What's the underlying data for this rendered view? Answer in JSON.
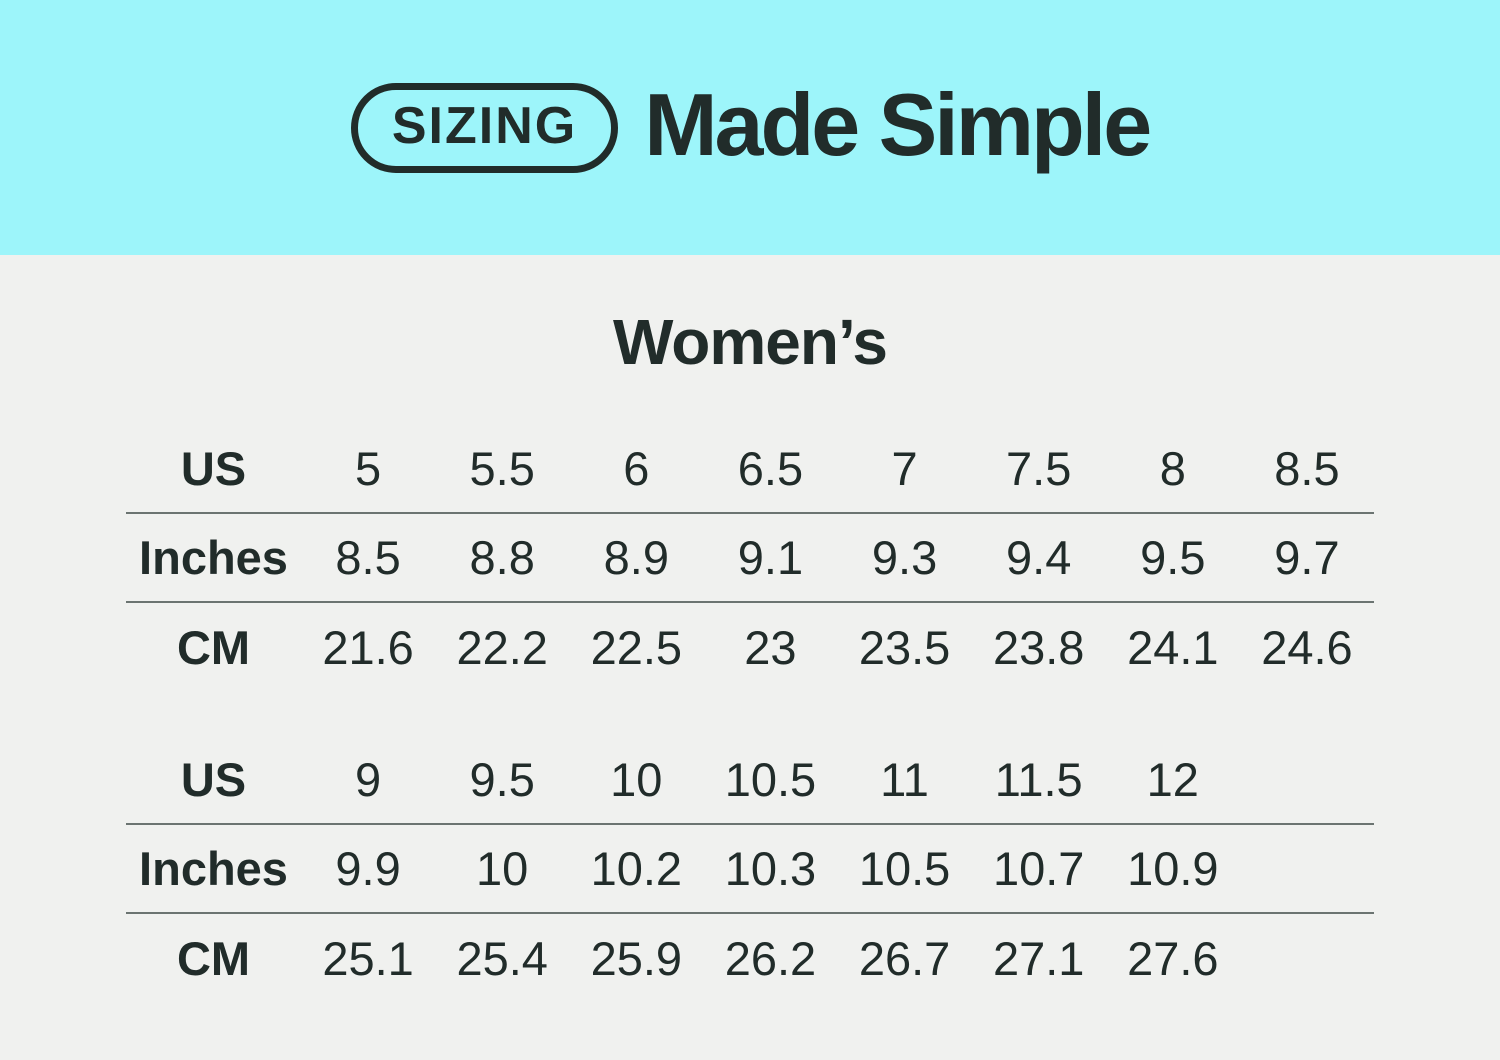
{
  "header": {
    "badge": "SIZING",
    "title": "Made Simple"
  },
  "section": {
    "title": "Women’s"
  },
  "colors": {
    "banner": "#9df5fa",
    "background": "#f0f1ef",
    "text": "#212c2a",
    "divider": "#6b7471"
  },
  "tables": [
    {
      "rows": [
        {
          "label": "US",
          "values": [
            "5",
            "5.5",
            "6",
            "6.5",
            "7",
            "7.5",
            "8",
            "8.5"
          ]
        },
        {
          "label": "Inches",
          "values": [
            "8.5",
            "8.8",
            "8.9",
            "9.1",
            "9.3",
            "9.4",
            "9.5",
            "9.7"
          ]
        },
        {
          "label": "CM",
          "values": [
            "21.6",
            "22.2",
            "22.5",
            "23",
            "23.5",
            "23.8",
            "24.1",
            "24.6"
          ]
        }
      ]
    },
    {
      "rows": [
        {
          "label": "US",
          "values": [
            "9",
            "9.5",
            "10",
            "10.5",
            "11",
            "11.5",
            "12"
          ]
        },
        {
          "label": "Inches",
          "values": [
            "9.9",
            "10",
            "10.2",
            "10.3",
            "10.5",
            "10.7",
            "10.9"
          ]
        },
        {
          "label": "CM",
          "values": [
            "25.1",
            "25.4",
            "25.9",
            "26.2",
            "26.7",
            "27.1",
            "27.6"
          ]
        }
      ]
    }
  ]
}
